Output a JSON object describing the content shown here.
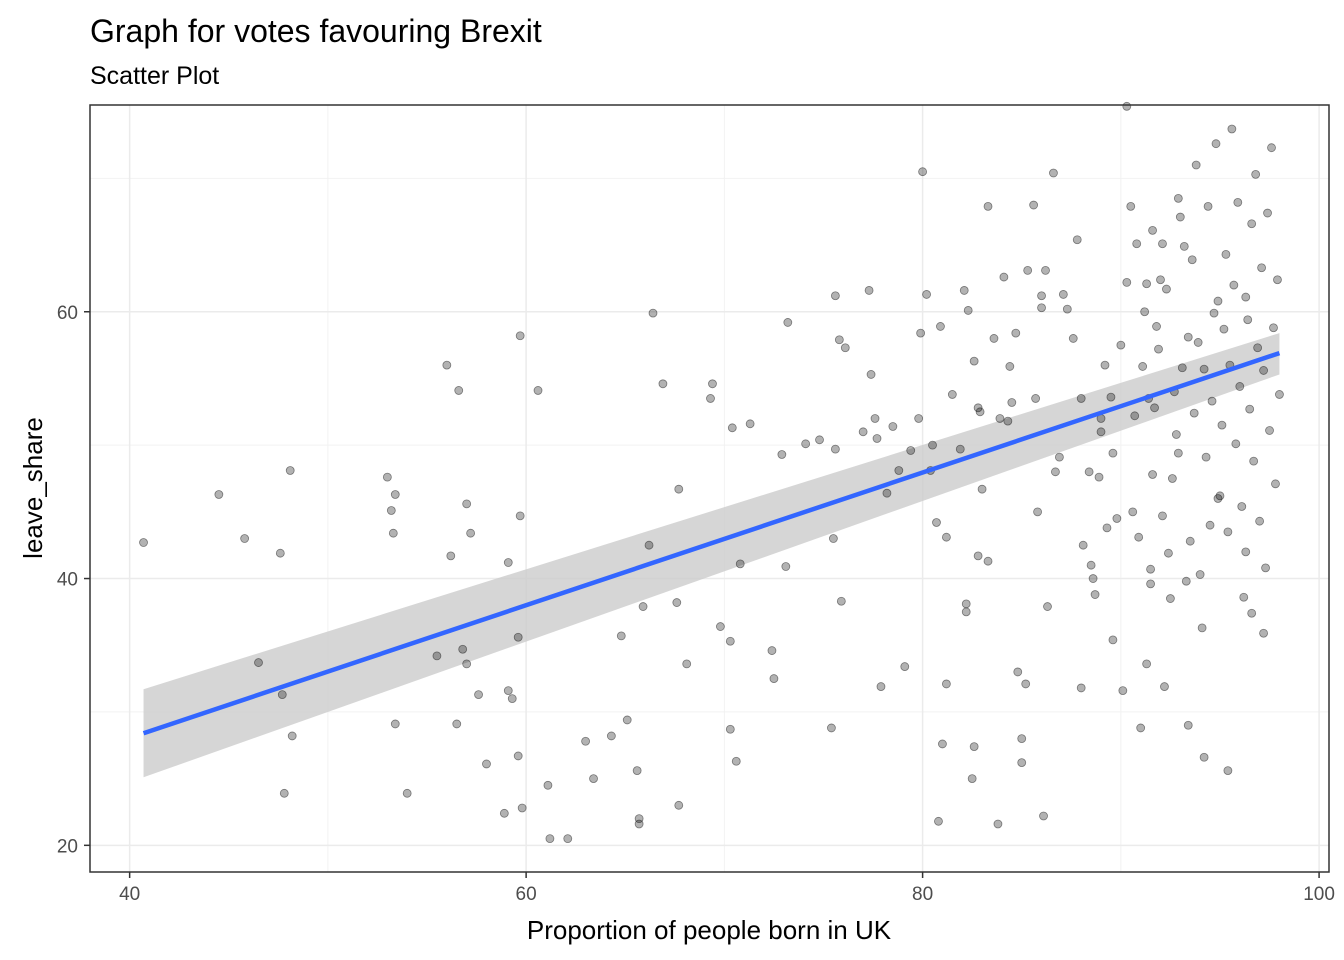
{
  "chart_data": {
    "type": "scatter",
    "title": "Graph for votes favouring Brexit",
    "subtitle": "Scatter Plot",
    "xlabel": "Proportion of people born in UK",
    "ylabel": "leave_share",
    "xlim": [
      38,
      100.5
    ],
    "ylim": [
      18,
      75.5
    ],
    "x_ticks": [
      40,
      60,
      80,
      100
    ],
    "y_ticks": [
      20,
      40,
      60
    ],
    "x_minor_ticks": [
      50,
      70,
      90
    ],
    "y_minor_ticks": [
      30,
      50,
      70
    ],
    "grid": true,
    "point_color": "#000000",
    "point_opacity": 0.3,
    "smooth_line_color": "#3366ff",
    "confidence_band_color": "#cccccc",
    "smooth": {
      "method": "linear",
      "x": [
        40.7,
        98.0
      ],
      "y": [
        28.4,
        56.9
      ],
      "ci_lower": [
        25.1,
        55.3
      ],
      "ci_upper": [
        31.7,
        58.4
      ]
    },
    "points": [
      [
        40.7,
        42.7
      ],
      [
        44.5,
        46.3
      ],
      [
        45.8,
        43.0
      ],
      [
        46.5,
        33.7
      ],
      [
        47.6,
        41.9
      ],
      [
        47.7,
        31.3
      ],
      [
        47.8,
        23.9
      ],
      [
        48.1,
        48.1
      ],
      [
        48.2,
        28.2
      ],
      [
        53.0,
        47.6
      ],
      [
        53.2,
        45.1
      ],
      [
        53.3,
        43.4
      ],
      [
        53.4,
        46.3
      ],
      [
        53.4,
        29.1
      ],
      [
        54.0,
        23.9
      ],
      [
        55.5,
        34.2
      ],
      [
        56.0,
        56.0
      ],
      [
        56.2,
        41.7
      ],
      [
        56.5,
        29.1
      ],
      [
        56.6,
        54.1
      ],
      [
        56.8,
        34.7
      ],
      [
        57.0,
        33.6
      ],
      [
        57.0,
        45.6
      ],
      [
        57.2,
        43.4
      ],
      [
        57.6,
        31.3
      ],
      [
        58.0,
        26.1
      ],
      [
        58.9,
        22.4
      ],
      [
        59.1,
        41.2
      ],
      [
        59.1,
        31.6
      ],
      [
        59.3,
        31.0
      ],
      [
        59.6,
        26.7
      ],
      [
        59.6,
        35.6
      ],
      [
        59.7,
        44.7
      ],
      [
        59.7,
        58.2
      ],
      [
        59.8,
        22.8
      ],
      [
        60.6,
        54.1
      ],
      [
        61.1,
        24.5
      ],
      [
        61.2,
        20.5
      ],
      [
        62.1,
        20.5
      ],
      [
        63.0,
        27.8
      ],
      [
        63.4,
        25.0
      ],
      [
        64.3,
        28.2
      ],
      [
        64.8,
        35.7
      ],
      [
        65.1,
        29.4
      ],
      [
        65.6,
        25.6
      ],
      [
        65.7,
        21.6
      ],
      [
        65.7,
        22.0
      ],
      [
        65.9,
        37.9
      ],
      [
        66.2,
        42.5
      ],
      [
        66.4,
        59.9
      ],
      [
        66.9,
        54.6
      ],
      [
        67.6,
        38.2
      ],
      [
        67.7,
        46.7
      ],
      [
        67.7,
        23.0
      ],
      [
        68.1,
        33.6
      ],
      [
        69.3,
        53.5
      ],
      [
        69.4,
        54.6
      ],
      [
        69.8,
        36.4
      ],
      [
        70.3,
        35.3
      ],
      [
        70.3,
        28.7
      ],
      [
        70.4,
        51.3
      ],
      [
        70.6,
        26.3
      ],
      [
        70.8,
        41.1
      ],
      [
        71.3,
        51.6
      ],
      [
        72.4,
        34.6
      ],
      [
        72.5,
        32.5
      ],
      [
        72.9,
        49.3
      ],
      [
        73.1,
        40.9
      ],
      [
        73.2,
        59.2
      ],
      [
        74.1,
        50.1
      ],
      [
        74.8,
        50.4
      ],
      [
        75.4,
        28.8
      ],
      [
        75.5,
        43.0
      ],
      [
        75.6,
        49.7
      ],
      [
        75.6,
        61.2
      ],
      [
        75.8,
        57.9
      ],
      [
        75.9,
        38.3
      ],
      [
        76.1,
        57.3
      ],
      [
        77.0,
        51.0
      ],
      [
        77.3,
        61.6
      ],
      [
        77.4,
        55.3
      ],
      [
        77.6,
        52.0
      ],
      [
        77.7,
        50.5
      ],
      [
        77.9,
        31.9
      ],
      [
        78.2,
        46.4
      ],
      [
        78.5,
        51.4
      ],
      [
        78.8,
        48.1
      ],
      [
        79.1,
        33.4
      ],
      [
        79.4,
        49.6
      ],
      [
        79.8,
        52.0
      ],
      [
        79.9,
        58.4
      ],
      [
        80.0,
        70.5
      ],
      [
        80.2,
        61.3
      ],
      [
        80.4,
        48.1
      ],
      [
        80.5,
        50.0
      ],
      [
        80.7,
        44.2
      ],
      [
        80.8,
        21.8
      ],
      [
        80.9,
        58.9
      ],
      [
        81.0,
        27.6
      ],
      [
        81.2,
        43.1
      ],
      [
        81.2,
        32.1
      ],
      [
        81.5,
        53.8
      ],
      [
        81.9,
        49.7
      ],
      [
        82.1,
        61.6
      ],
      [
        82.2,
        37.5
      ],
      [
        82.2,
        38.1
      ],
      [
        82.3,
        60.1
      ],
      [
        82.5,
        25.0
      ],
      [
        82.6,
        27.4
      ],
      [
        82.6,
        56.3
      ],
      [
        82.8,
        52.8
      ],
      [
        82.8,
        41.7
      ],
      [
        82.9,
        52.5
      ],
      [
        83.0,
        46.7
      ],
      [
        83.3,
        67.9
      ],
      [
        83.3,
        41.3
      ],
      [
        83.6,
        58.0
      ],
      [
        83.8,
        21.6
      ],
      [
        83.9,
        52.0
      ],
      [
        84.1,
        62.6
      ],
      [
        84.3,
        51.8
      ],
      [
        84.4,
        55.9
      ],
      [
        84.5,
        53.2
      ],
      [
        84.7,
        58.4
      ],
      [
        84.8,
        33.0
      ],
      [
        85.0,
        28.0
      ],
      [
        85.0,
        26.2
      ],
      [
        85.2,
        32.1
      ],
      [
        85.3,
        63.1
      ],
      [
        85.6,
        68.0
      ],
      [
        85.7,
        53.5
      ],
      [
        85.8,
        45.0
      ],
      [
        86.0,
        60.3
      ],
      [
        86.0,
        61.2
      ],
      [
        86.1,
        22.2
      ],
      [
        86.2,
        63.1
      ],
      [
        86.3,
        37.9
      ],
      [
        86.6,
        70.4
      ],
      [
        86.7,
        48.0
      ],
      [
        86.9,
        49.1
      ],
      [
        87.1,
        61.3
      ],
      [
        87.3,
        60.2
      ],
      [
        87.6,
        58.0
      ],
      [
        87.8,
        65.4
      ],
      [
        88.0,
        53.5
      ],
      [
        88.0,
        31.8
      ],
      [
        88.1,
        42.5
      ],
      [
        88.4,
        48.0
      ],
      [
        88.5,
        41.0
      ],
      [
        88.6,
        40.0
      ],
      [
        88.7,
        38.8
      ],
      [
        88.9,
        47.6
      ],
      [
        89.0,
        51.0
      ],
      [
        89.0,
        52.0
      ],
      [
        89.2,
        56.0
      ],
      [
        89.3,
        43.8
      ],
      [
        89.5,
        53.6
      ],
      [
        89.6,
        35.4
      ],
      [
        89.6,
        49.4
      ],
      [
        89.8,
        44.5
      ],
      [
        90.0,
        57.5
      ],
      [
        90.3,
        75.4
      ],
      [
        90.3,
        62.2
      ],
      [
        90.5,
        67.9
      ],
      [
        90.6,
        45.0
      ],
      [
        90.7,
        52.2
      ],
      [
        90.8,
        65.1
      ],
      [
        90.9,
        43.1
      ],
      [
        91.1,
        55.9
      ],
      [
        91.2,
        60.0
      ],
      [
        91.3,
        33.6
      ],
      [
        91.3,
        62.1
      ],
      [
        91.4,
        53.5
      ],
      [
        91.5,
        40.7
      ],
      [
        91.5,
        39.6
      ],
      [
        91.6,
        66.1
      ],
      [
        91.7,
        52.8
      ],
      [
        91.8,
        58.9
      ],
      [
        91.9,
        57.2
      ],
      [
        92.0,
        62.4
      ],
      [
        92.1,
        65.1
      ],
      [
        92.1,
        44.7
      ],
      [
        92.3,
        61.7
      ],
      [
        92.4,
        41.9
      ],
      [
        92.5,
        38.5
      ],
      [
        92.6,
        47.5
      ],
      [
        92.7,
        54.0
      ],
      [
        92.8,
        50.8
      ],
      [
        92.9,
        68.5
      ],
      [
        93.0,
        67.1
      ],
      [
        93.1,
        55.8
      ],
      [
        93.2,
        64.9
      ],
      [
        93.3,
        39.8
      ],
      [
        93.4,
        58.1
      ],
      [
        93.5,
        42.8
      ],
      [
        93.6,
        63.9
      ],
      [
        93.7,
        52.4
      ],
      [
        93.8,
        71.0
      ],
      [
        93.9,
        57.7
      ],
      [
        94.0,
        40.3
      ],
      [
        94.1,
        36.3
      ],
      [
        94.2,
        55.7
      ],
      [
        94.3,
        49.1
      ],
      [
        94.4,
        67.9
      ],
      [
        94.5,
        44.0
      ],
      [
        94.6,
        53.3
      ],
      [
        94.7,
        59.9
      ],
      [
        94.8,
        72.6
      ],
      [
        94.9,
        60.8
      ],
      [
        95.0,
        46.2
      ],
      [
        95.1,
        51.5
      ],
      [
        95.2,
        58.7
      ],
      [
        95.3,
        64.3
      ],
      [
        95.4,
        43.5
      ],
      [
        95.5,
        56.0
      ],
      [
        95.6,
        73.7
      ],
      [
        95.7,
        62.0
      ],
      [
        95.8,
        50.1
      ],
      [
        95.9,
        68.2
      ],
      [
        96.0,
        54.4
      ],
      [
        96.1,
        45.4
      ],
      [
        96.2,
        38.6
      ],
      [
        96.3,
        61.1
      ],
      [
        96.4,
        59.4
      ],
      [
        96.5,
        52.7
      ],
      [
        96.6,
        66.6
      ],
      [
        96.7,
        48.8
      ],
      [
        96.8,
        70.3
      ],
      [
        96.9,
        57.3
      ],
      [
        97.0,
        44.3
      ],
      [
        97.1,
        63.3
      ],
      [
        97.2,
        55.6
      ],
      [
        97.3,
        40.8
      ],
      [
        97.4,
        67.4
      ],
      [
        97.5,
        51.1
      ],
      [
        97.6,
        72.3
      ],
      [
        97.7,
        58.8
      ],
      [
        97.8,
        47.1
      ],
      [
        97.9,
        62.4
      ],
      [
        98.0,
        53.8
      ],
      [
        92.2,
        31.9
      ],
      [
        93.4,
        29.0
      ],
      [
        94.2,
        26.6
      ],
      [
        95.4,
        25.6
      ],
      [
        96.6,
        37.4
      ],
      [
        97.2,
        35.9
      ],
      [
        91.0,
        28.8
      ],
      [
        90.1,
        31.6
      ],
      [
        91.6,
        47.8
      ],
      [
        92.9,
        49.4
      ],
      [
        94.9,
        46.0
      ],
      [
        96.3,
        42.0
      ]
    ]
  }
}
